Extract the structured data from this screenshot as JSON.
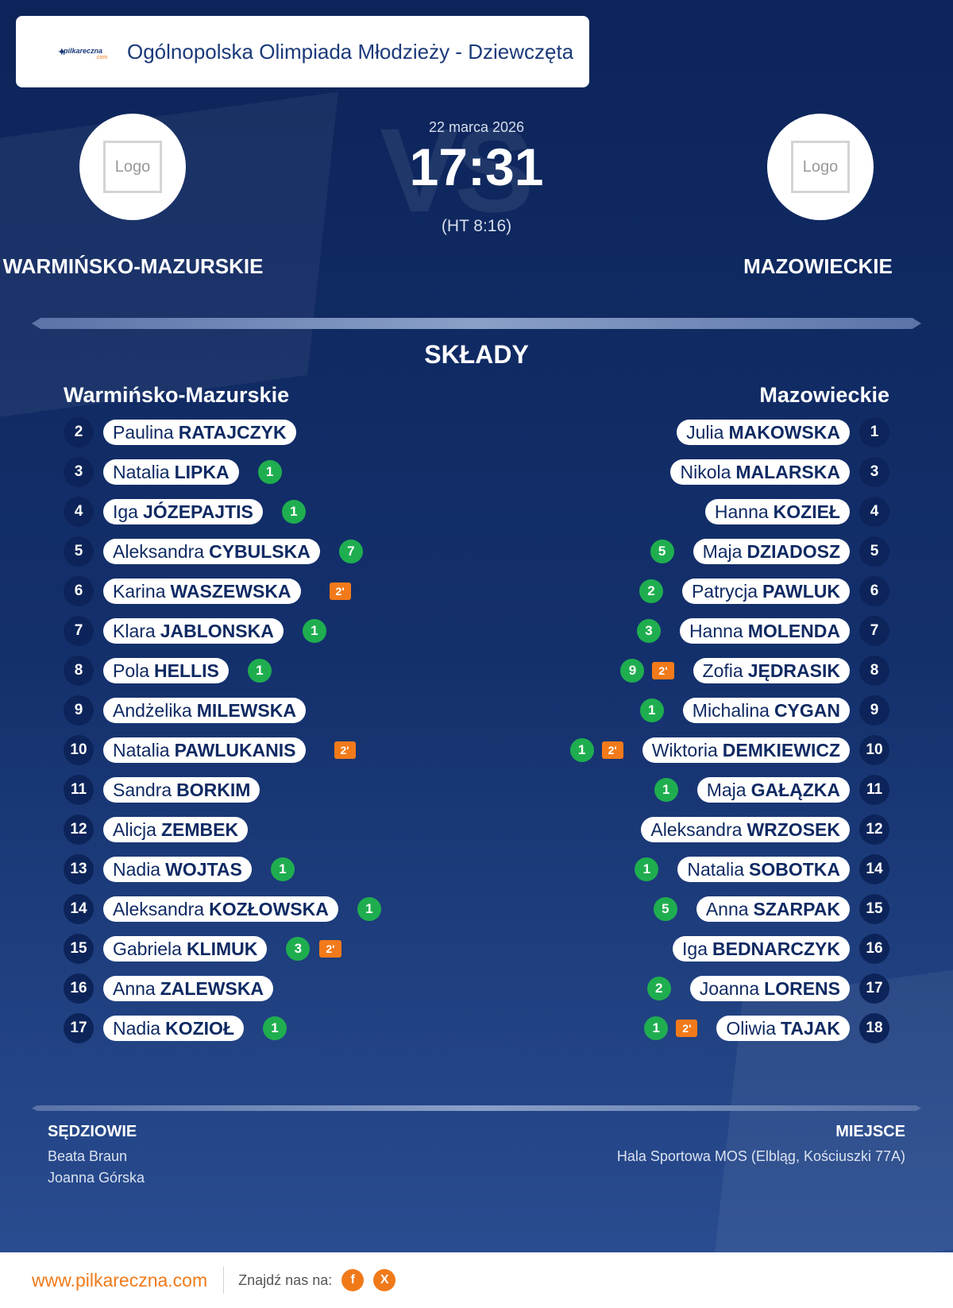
{
  "header": {
    "brand_text": "pilkareczna",
    "brand_com": ".com",
    "title": "Ogólnopolska Olimpiada Młodzieży - Dziewczęta"
  },
  "match": {
    "date": "22 marca 2026",
    "score": "17:31",
    "halftime": "(HT 8:16)",
    "vs_bg": "VS",
    "home": {
      "name": "WARMIŃSKO-MAZURSKIE",
      "logo_text": "Logo"
    },
    "away": {
      "name": "MAZOWIECKIE",
      "logo_text": "Logo"
    }
  },
  "lineups": {
    "title": "SKŁADY",
    "home_title": "Warmińsko-Mazurskie",
    "away_title": "Mazowieckie",
    "home_players": [
      {
        "number": "2",
        "first": "Paulina",
        "last": "RATAJCZYK",
        "goals": "",
        "penalty": ""
      },
      {
        "number": "3",
        "first": "Natalia",
        "last": "LIPKA",
        "goals": "1",
        "penalty": ""
      },
      {
        "number": "4",
        "first": "Iga",
        "last": "JÓZEPAJTIS",
        "goals": "1",
        "penalty": ""
      },
      {
        "number": "5",
        "first": "Aleksandra",
        "last": "CYBULSKA",
        "goals": "7",
        "penalty": ""
      },
      {
        "number": "6",
        "first": "Karina",
        "last": "WASZEWSKA",
        "goals": "",
        "penalty": "2'"
      },
      {
        "number": "7",
        "first": "Klara",
        "last": "JABLONSKA",
        "goals": "1",
        "penalty": ""
      },
      {
        "number": "8",
        "first": "Pola",
        "last": "HELLIS",
        "goals": "1",
        "penalty": ""
      },
      {
        "number": "9",
        "first": "Andżelika",
        "last": "MILEWSKA",
        "goals": "",
        "penalty": ""
      },
      {
        "number": "10",
        "first": "Natalia",
        "last": "PAWLUKANIS",
        "goals": "",
        "penalty": "2'"
      },
      {
        "number": "11",
        "first": "Sandra",
        "last": "BORKIM",
        "goals": "",
        "penalty": ""
      },
      {
        "number": "12",
        "first": "Alicja",
        "last": "ZEMBEK",
        "goals": "",
        "penalty": ""
      },
      {
        "number": "13",
        "first": "Nadia",
        "last": "WOJTAS",
        "goals": "1",
        "penalty": ""
      },
      {
        "number": "14",
        "first": "Aleksandra",
        "last": "KOZŁOWSKA",
        "goals": "1",
        "penalty": ""
      },
      {
        "number": "15",
        "first": "Gabriela",
        "last": "KLIMUK",
        "goals": "3",
        "penalty": "2'"
      },
      {
        "number": "16",
        "first": "Anna",
        "last": "ZALEWSKA",
        "goals": "",
        "penalty": ""
      },
      {
        "number": "17",
        "first": "Nadia",
        "last": "KOZIOŁ",
        "goals": "1",
        "penalty": ""
      }
    ],
    "away_players": [
      {
        "number": "1",
        "first": "Julia",
        "last": "MAKOWSKA",
        "goals": "",
        "penalty": ""
      },
      {
        "number": "3",
        "first": "Nikola",
        "last": "MALARSKA",
        "goals": "",
        "penalty": ""
      },
      {
        "number": "4",
        "first": "Hanna",
        "last": "KOZIEŁ",
        "goals": "",
        "penalty": ""
      },
      {
        "number": "5",
        "first": "Maja",
        "last": "DZIADOSZ",
        "goals": "5",
        "penalty": ""
      },
      {
        "number": "6",
        "first": "Patrycja",
        "last": "PAWLUK",
        "goals": "2",
        "penalty": ""
      },
      {
        "number": "7",
        "first": "Hanna",
        "last": "MOLENDA",
        "goals": "3",
        "penalty": ""
      },
      {
        "number": "8",
        "first": "Zofia",
        "last": "JĘDRASIK",
        "goals": "9",
        "penalty": "2'"
      },
      {
        "number": "9",
        "first": "Michalina",
        "last": "CYGAN",
        "goals": "1",
        "penalty": ""
      },
      {
        "number": "10",
        "first": "Wiktoria",
        "last": "DEMKIEWICZ",
        "goals": "1",
        "penalty": "2'"
      },
      {
        "number": "11",
        "first": "Maja",
        "last": "GAŁĄZKA",
        "goals": "1",
        "penalty": ""
      },
      {
        "number": "12",
        "first": "Aleksandra",
        "last": "WRZOSEK",
        "goals": "",
        "penalty": ""
      },
      {
        "number": "14",
        "first": "Natalia",
        "last": "SOBOTKA",
        "goals": "1",
        "penalty": ""
      },
      {
        "number": "15",
        "first": "Anna",
        "last": "SZARPAK",
        "goals": "5",
        "penalty": ""
      },
      {
        "number": "16",
        "first": "Iga",
        "last": "BEDNARCZYK",
        "goals": "",
        "penalty": ""
      },
      {
        "number": "17",
        "first": "Joanna",
        "last": "LORENS",
        "goals": "2",
        "penalty": ""
      },
      {
        "number": "18",
        "first": "Oliwia",
        "last": "TAJAK",
        "goals": "1",
        "penalty": "2'"
      }
    ]
  },
  "officials": {
    "label": "SĘDZIOWIE",
    "names": [
      "Beata Braun",
      "Joanna Górska"
    ]
  },
  "venue": {
    "label": "MIEJSCE",
    "value": "Hala Sportowa MOS (Elbląg, Kościuszki 77A)"
  },
  "footer": {
    "url": "www.pilkareczna.com",
    "find_us": "Znajdź nas na:",
    "social": [
      {
        "icon": "facebook-icon",
        "glyph": "f"
      },
      {
        "icon": "x-icon",
        "glyph": "X"
      }
    ],
    "accent_color": "#f07a1a"
  }
}
